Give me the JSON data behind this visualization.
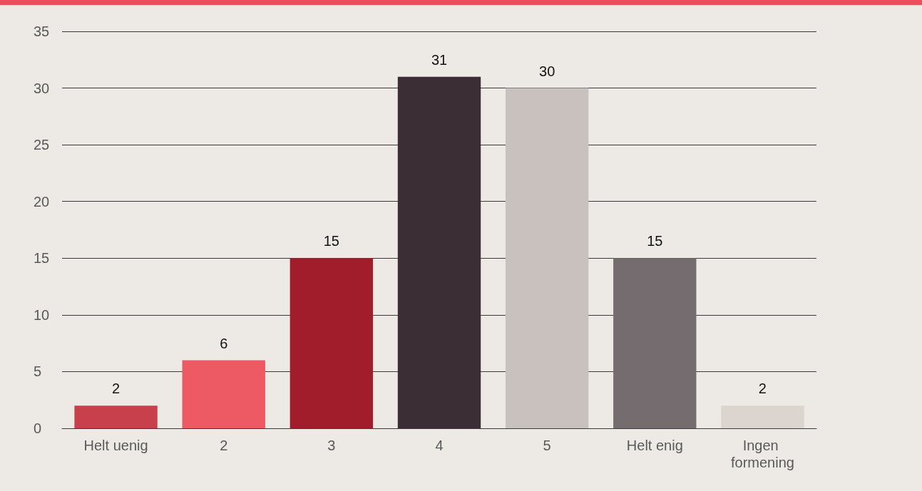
{
  "chart_data": {
    "type": "bar",
    "categories": [
      "Helt uenig",
      "2",
      "3",
      "4",
      "5",
      "Helt enig",
      "Ingen formening"
    ],
    "values": [
      2,
      6,
      15,
      31,
      30,
      15,
      2
    ],
    "colors": [
      "#c8404c",
      "#ee5a64",
      "#a11d2b",
      "#3b2f35",
      "#c9c1bd",
      "#746c6e",
      "#dcd4ce"
    ],
    "ylim": [
      0,
      35
    ],
    "yticks": [
      0,
      5,
      10,
      15,
      20,
      25,
      30,
      35
    ],
    "grid": "y",
    "data_labels": true
  }
}
